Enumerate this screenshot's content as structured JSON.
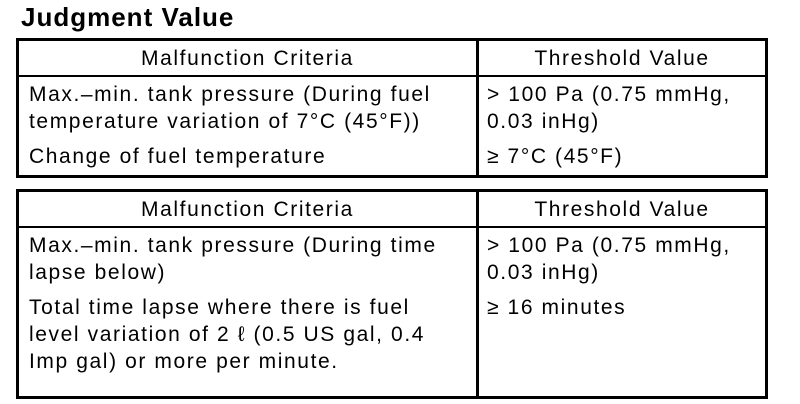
{
  "title": "Judgment Value",
  "colors": {
    "text": "#000000",
    "background": "#ffffff",
    "table_border": "#000000"
  },
  "tables": [
    {
      "headers": [
        "Malfunction Criteria",
        "Threshold Value"
      ],
      "rows": [
        {
          "criteria": "Max.–min. tank pressure (During fuel temperature variation of 7°C (45°F))",
          "threshold": "> 100 Pa (0.75 mmHg, 0.03 inHg)"
        },
        {
          "criteria": "Change of fuel temperature",
          "threshold": "≥ 7°C (45°F)"
        }
      ]
    },
    {
      "headers": [
        "Malfunction Criteria",
        "Threshold Value"
      ],
      "rows": [
        {
          "criteria": "Max.–min. tank pressure (During time lapse below)",
          "threshold": "> 100 Pa (0.75 mmHg, 0.03 inHg)"
        },
        {
          "criteria": "Total time lapse where there is fuel level variation of 2 ℓ  (0.5 US gal, 0.4 Imp gal) or more per minute.",
          "threshold": "≥ 16 minutes"
        }
      ]
    }
  ]
}
